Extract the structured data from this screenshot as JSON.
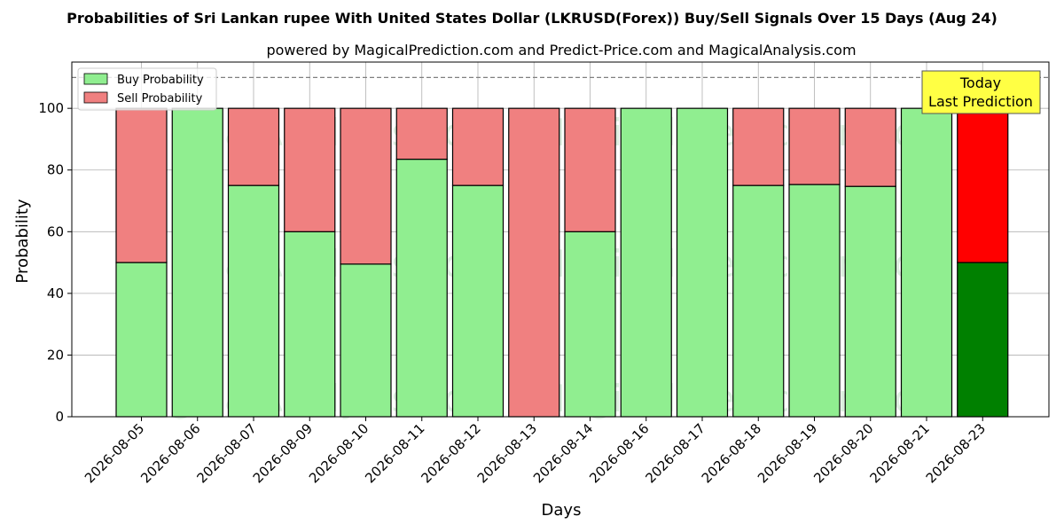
{
  "chart_data": {
    "type": "bar",
    "stacked": true,
    "title": "Probabilities of Sri Lankan rupee With United States Dollar (LKRUSD(Forex)) Buy/Sell Signals Over 15 Days (Aug 24)",
    "subtitle": "powered by MagicalPrediction.com and Predict-Price.com and MagicalAnalysis.com",
    "xlabel": "Days",
    "ylabel": "Probability",
    "ylim": [
      0,
      115
    ],
    "yticks": [
      0,
      20,
      40,
      60,
      80,
      100
    ],
    "grid": true,
    "legend_position": "top-left",
    "reference_line": 110,
    "categories": [
      "2026-08-05",
      "2026-08-06",
      "2026-08-07",
      "2026-08-09",
      "2026-08-10",
      "2026-08-11",
      "2026-08-12",
      "2026-08-13",
      "2026-08-14",
      "2026-08-16",
      "2026-08-17",
      "2026-08-18",
      "2026-08-19",
      "2026-08-20",
      "2026-08-21",
      "2026-08-23"
    ],
    "series": [
      {
        "name": "Buy Probability",
        "color": "#90EE90",
        "values": [
          50,
          100,
          75,
          60,
          49.5,
          83.5,
          75,
          0,
          60,
          100,
          100,
          75,
          75.3,
          74.7,
          100,
          50
        ]
      },
      {
        "name": "Sell Probability",
        "color": "#F08080",
        "values": [
          50,
          0,
          25,
          40,
          50.5,
          16.5,
          25,
          100,
          40,
          0,
          0,
          25,
          24.7,
          25.3,
          0,
          50
        ]
      }
    ],
    "highlight": {
      "index": 15,
      "buy_color": "#008000",
      "sell_color": "#FF0000"
    },
    "annotation": {
      "line1": "Today",
      "line2": "Last Prediction",
      "bg": "#FFFF44"
    },
    "watermarks": [
      "MagicalAnalysis.com",
      "MagicalPrediction.com"
    ]
  }
}
